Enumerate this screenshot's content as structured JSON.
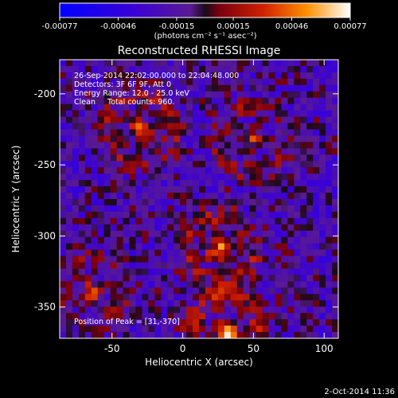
{
  "chart_data": {
    "type": "heatmap",
    "title": "Reconstructed RHESSI Image",
    "xlabel": "Heliocentric X (arcsec)",
    "ylabel": "Heliocentric Y (arcsec)",
    "xlim": [
      -87,
      110
    ],
    "ylim": [
      -372,
      -176
    ],
    "xticks": [
      -50,
      0,
      50,
      100
    ],
    "xtick_labels": [
      "-50",
      "0",
      "50",
      "100"
    ],
    "yticks": [
      -200,
      -250,
      -300,
      -350
    ],
    "ytick_labels": [
      "-200",
      "-250",
      "-300",
      "-350"
    ],
    "grid": false,
    "colorbar": {
      "ticks": [
        -0.00077,
        -0.00046,
        -0.00015,
        0.00015,
        0.00046,
        0.00077
      ],
      "tick_labels": [
        "-0.00077",
        "-0.00046",
        "-0.00015",
        "0.00015",
        "0.00046",
        "0.00077"
      ],
      "unit_label": "(photons cm⁻² s⁻¹ asec⁻²)",
      "range": [
        -0.00077,
        0.00077
      ]
    },
    "annotations": [
      "26-Sep-2014 22:02:00.000 to 22:04:48.000",
      "Detectors: 3F 6F 9F, Att 0",
      "Energy Range: 12.0 - 25.0 keV",
      "Clean     Total counts: 960.",
      "Position of Peak = [31,-370]"
    ],
    "peak": [
      31,
      -370
    ],
    "sources": [
      {
        "x": 25,
        "y": -310,
        "amp": 0.00062
      },
      {
        "x": -30,
        "y": -225,
        "amp": 0.0005
      },
      {
        "x": 50,
        "y": -232,
        "amp": 0.00045
      },
      {
        "x": -65,
        "y": -340,
        "amp": 0.0004
      },
      {
        "x": 31,
        "y": -368,
        "amp": 0.00072
      }
    ]
  },
  "footer": {
    "date": "2-Oct-2014 11:36"
  },
  "colors": {
    "background": "#000000",
    "axis": "#ffffff"
  }
}
